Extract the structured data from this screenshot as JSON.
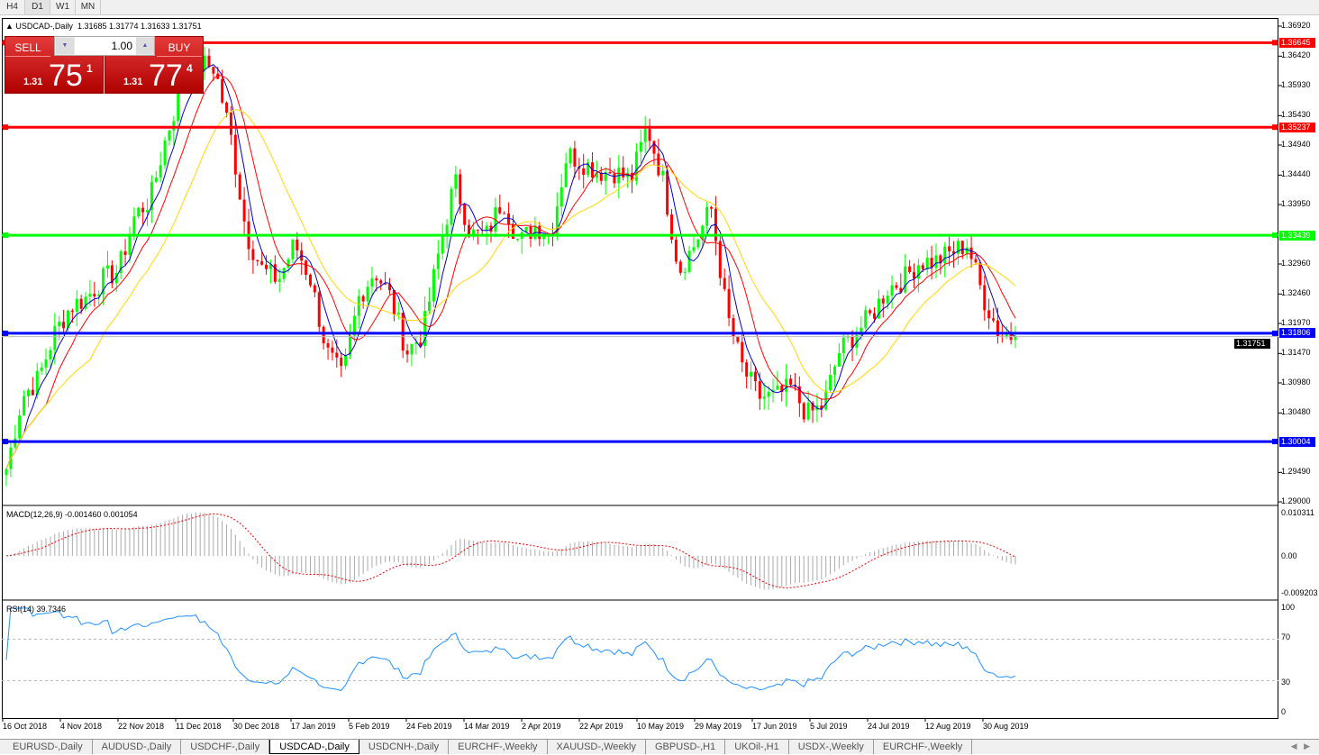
{
  "timeframes": [
    "H4",
    "D1",
    "W1",
    "MN"
  ],
  "active_timeframe": "D1",
  "chart": {
    "title": "USDCAD-,Daily",
    "ohlc": "1.31685 1.31774 1.31633 1.31751"
  },
  "trade_panel": {
    "sell_label": "SELL",
    "buy_label": "BUY",
    "lot": "1.00",
    "sell": {
      "prefix": "1.31",
      "big": "75",
      "sup": "1"
    },
    "buy": {
      "prefix": "1.31",
      "big": "77",
      "sup": "4"
    }
  },
  "price_axis": [
    "1.36920",
    "1.36420",
    "1.35930",
    "1.35430",
    "1.34940",
    "1.34440",
    "1.33950",
    "1.32960",
    "1.32460",
    "1.31970",
    "1.31470",
    "1.30980",
    "1.30480",
    "1.29490",
    "1.29000"
  ],
  "current_price": "1.31751",
  "hlines": [
    {
      "price": 1.36645,
      "label": "1.36645",
      "color": "#ff0000"
    },
    {
      "price": 1.35237,
      "label": "1.35237",
      "color": "#ff0000"
    },
    {
      "price": 1.33439,
      "label": "1.33439",
      "color": "#00ff00"
    },
    {
      "price": 1.31806,
      "label": "1.31806",
      "color": "#0000ff"
    },
    {
      "price": 1.30004,
      "label": "1.30004",
      "color": "#0000ff"
    }
  ],
  "macd": {
    "label": "MACD(12,26,9) -0.001460 0.001054",
    "axis": [
      "0.010311",
      "0.00",
      "-0.009203"
    ]
  },
  "rsi": {
    "label": "RSI(14) 39.7346",
    "axis": [
      "100",
      "70",
      "30",
      "0"
    ]
  },
  "dates": [
    "16 Oct 2018",
    "4 Nov 2018",
    "22 Nov 2018",
    "11 Dec 2018",
    "30 Dec 2018",
    "17 Jan 2019",
    "5 Feb 2019",
    "24 Feb 2019",
    "14 Mar 2019",
    "2 Apr 2019",
    "22 Apr 2019",
    "10 May 2019",
    "29 May 2019",
    "17 Jun 2019",
    "5 Jul 2019",
    "24 Jul 2019",
    "12 Aug 2019",
    "30 Aug 2019"
  ],
  "tabs": [
    "EURUSD-,Daily",
    "AUDUSD-,Daily",
    "USDCHF-,Daily",
    "USDCAD-,Daily",
    "USDCNH-,Daily",
    "EURCHF-,Weekly",
    "XAUUSD-,Weekly",
    "GBPUSD-,H1",
    "UKOil-,H1",
    "USDX-,Weekly",
    "EURCHF-,Weekly"
  ],
  "active_tab": "USDCAD-,Daily",
  "chart_data": {
    "type": "candlestick",
    "ylim": [
      1.29,
      1.3692
    ],
    "up_color": "#00ff00",
    "down_color": "#ff0000",
    "approx_closes": [
      1.2955,
      1.3075,
      1.3105,
      1.318,
      1.3225,
      1.324,
      1.327,
      1.3285,
      1.3375,
      1.3405,
      1.351,
      1.3593,
      1.363,
      1.3623,
      1.351,
      1.3345,
      1.3285,
      1.327,
      1.333,
      1.327,
      1.315,
      1.3105,
      1.324,
      1.3285,
      1.324,
      1.315,
      1.318,
      1.3315,
      1.3435,
      1.3345,
      1.3345,
      1.3405,
      1.333,
      1.336,
      1.3345,
      1.348,
      1.3465,
      1.345,
      1.345,
      1.3435,
      1.3525,
      1.3435,
      1.3285,
      1.333,
      1.339,
      1.321,
      1.312,
      1.3075,
      1.3075,
      1.309,
      1.3045,
      1.306,
      1.315,
      1.318,
      1.321,
      1.3255,
      1.327,
      1.33,
      1.33,
      1.3315,
      1.333,
      1.324,
      1.318,
      1.3175
    ]
  }
}
